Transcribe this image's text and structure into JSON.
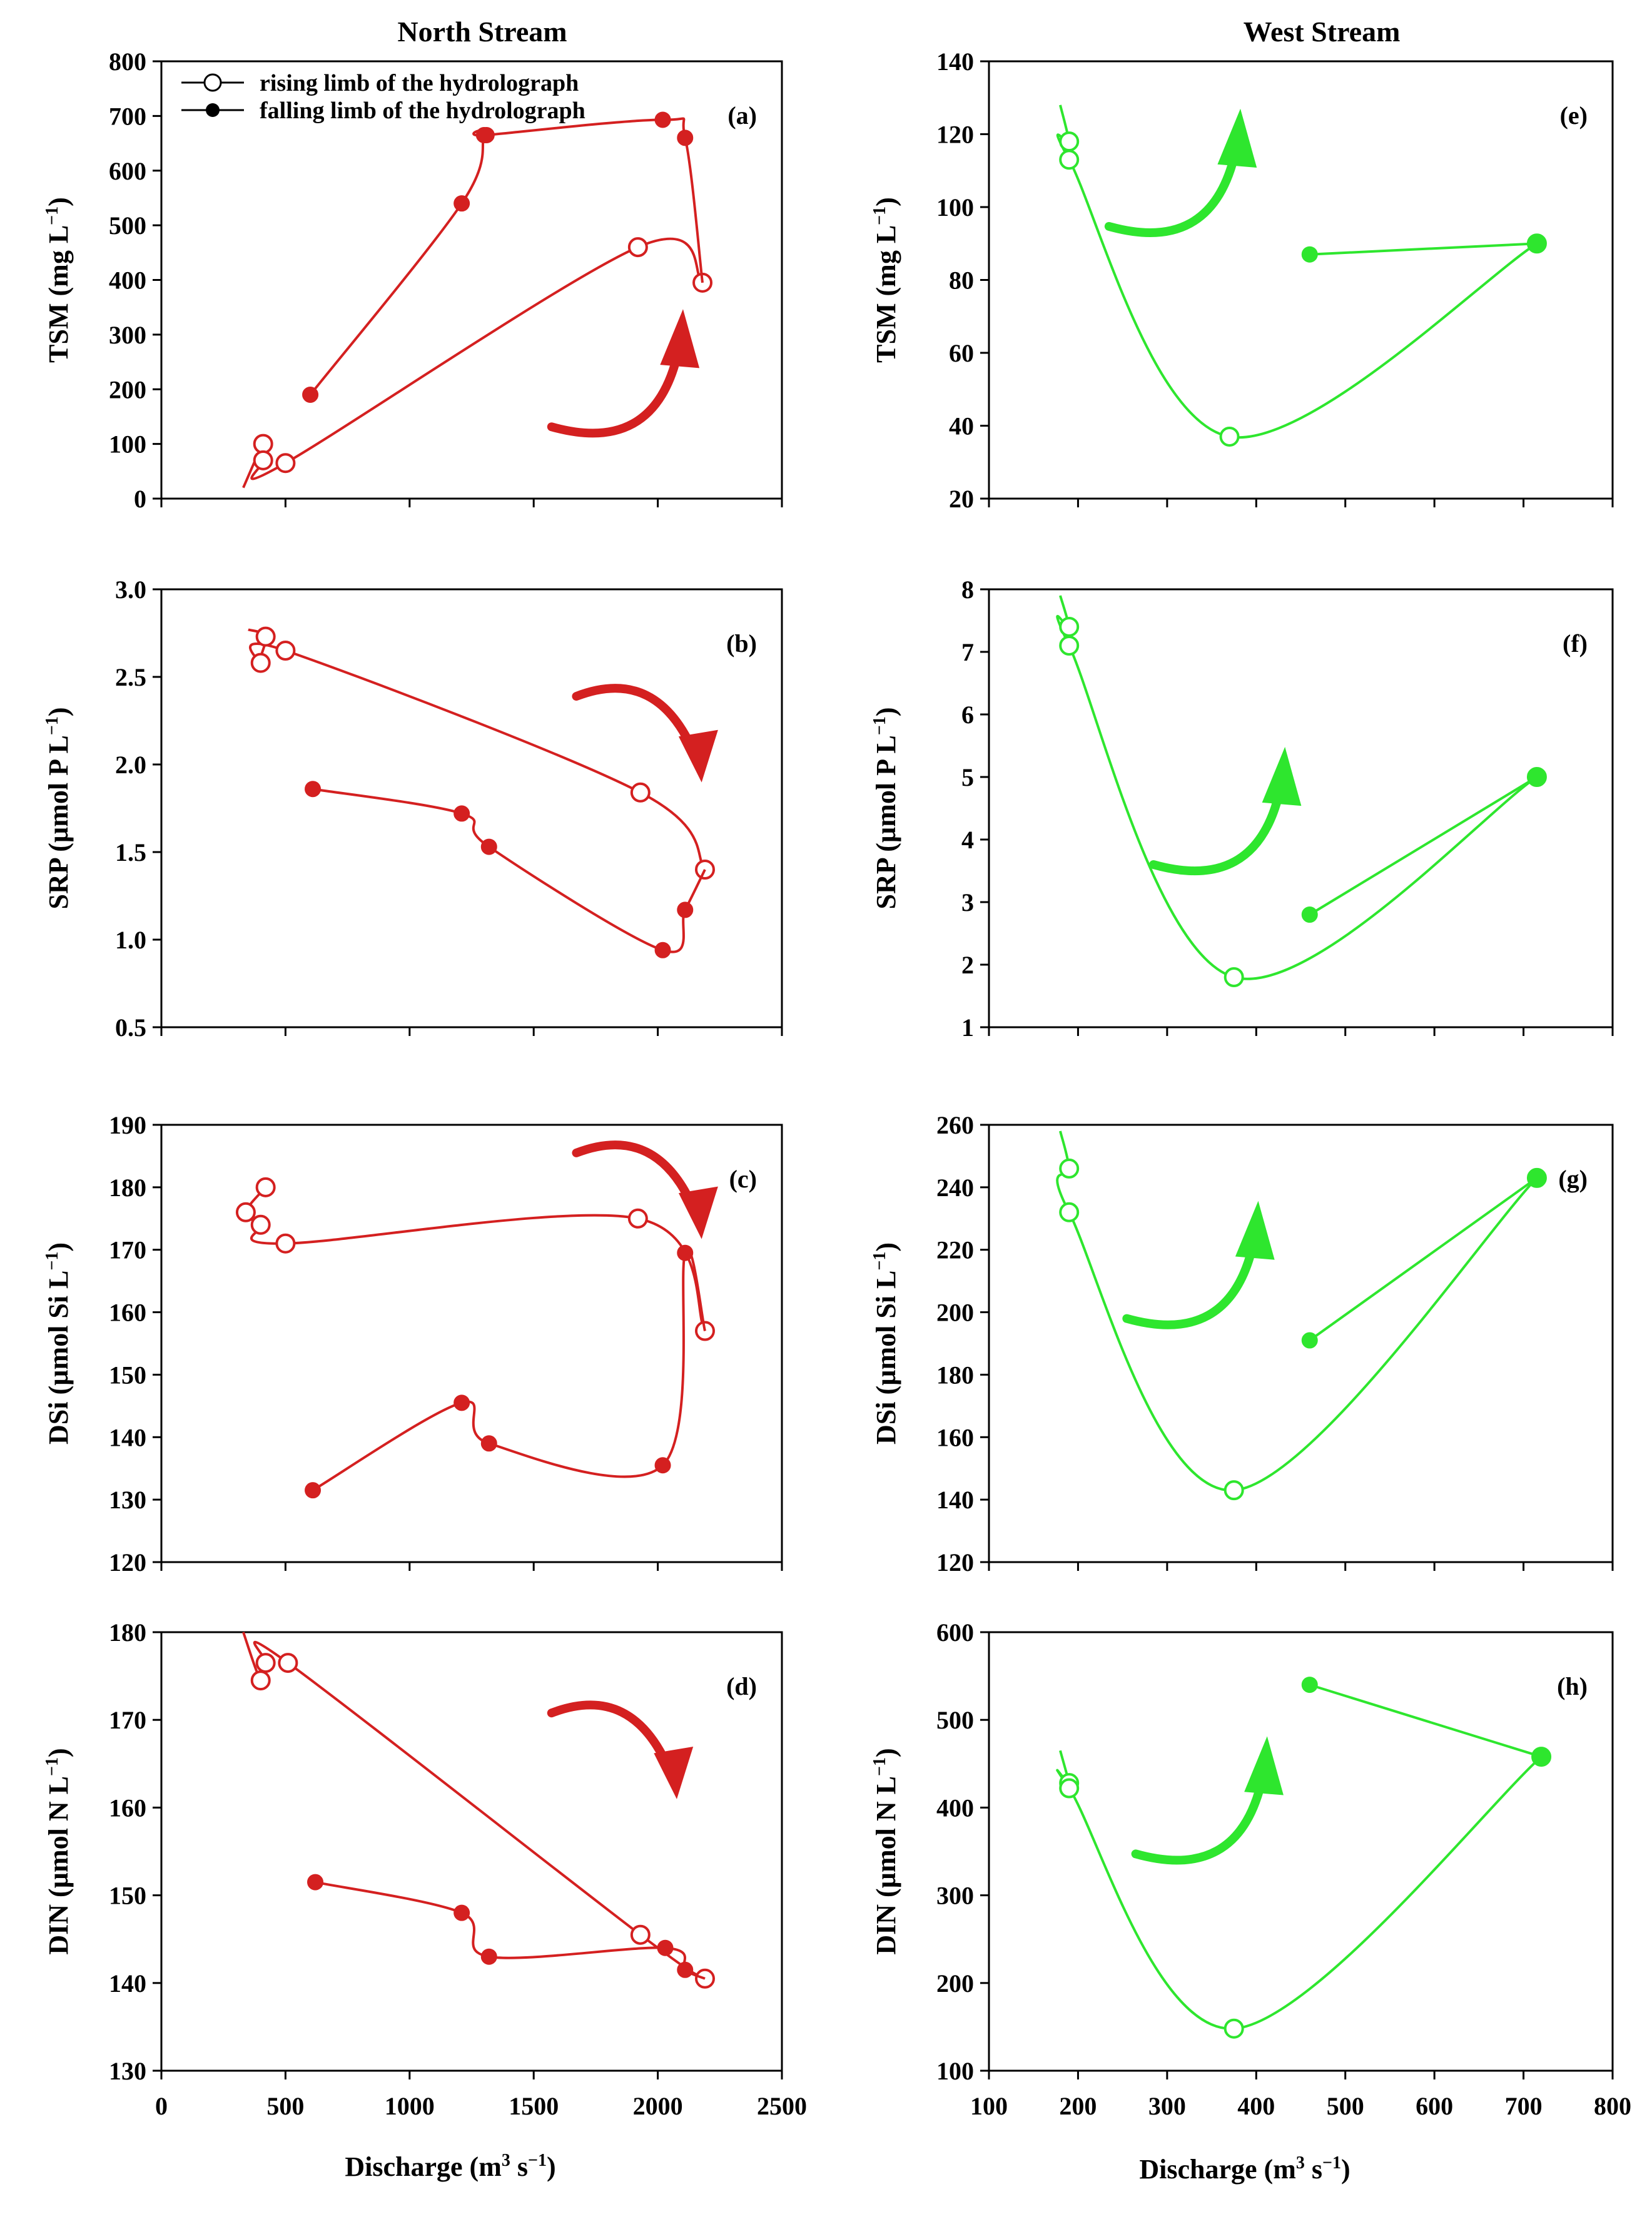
{
  "figure": {
    "column_titles": [
      "North Stream",
      "West Stream"
    ],
    "x_label_prefix": "Discharge (m",
    "x_label_sup1": "3",
    "x_label_mid": " s",
    "x_label_sup2": "−1",
    "x_label_suffix": ")",
    "legend": {
      "rising": "rising limb of the hydrolograph",
      "falling": "falling limb of the hydrolograph"
    },
    "colors": {
      "north": "#d42020",
      "west": "#2ee62e",
      "axis": "#000000"
    }
  },
  "chart_data": [
    {
      "type": "scatter",
      "panel": "(a)",
      "column": "North Stream",
      "ylabel_prefix": "TSM (mg L",
      "ylabel_sup": "−1",
      "ylabel_suffix": ")",
      "xlim": [
        0,
        2500
      ],
      "ylim": [
        0,
        800
      ],
      "xticks": [
        "0",
        "500",
        "1000",
        "1500",
        "2000",
        "2500"
      ],
      "xtick_values": [
        0,
        500,
        1000,
        1500,
        2000,
        2500
      ],
      "yticks": [
        "0",
        "100",
        "200",
        "300",
        "400",
        "500",
        "600",
        "700",
        "800"
      ],
      "ytick_values": [
        0,
        100,
        200,
        300,
        400,
        500,
        600,
        700,
        800
      ],
      "show_xtick_labels": false,
      "series": [
        {
          "name": "rising",
          "x": [
            330,
            410,
            410,
            500,
            1920,
            2180
          ],
          "y": [
            20,
            100,
            70,
            65,
            460,
            395
          ],
          "marker_from": 1
        },
        {
          "name": "falling",
          "x": [
            2180,
            2110,
            2020,
            1310,
            1300,
            1210,
            600
          ],
          "y": [
            395,
            660,
            693,
            665,
            665,
            540,
            190
          ],
          "marker_from": 1
        }
      ],
      "arrow": {
        "direction": "counterclockwise",
        "x": 1950,
        "y": 200
      }
    },
    {
      "type": "scatter",
      "panel": "(b)",
      "column": "North Stream",
      "ylabel_prefix": "SRP (µmol P L",
      "ylabel_sup": "−1",
      "ylabel_suffix": ")",
      "xlim": [
        0,
        2500
      ],
      "ylim": [
        0.5,
        3.0
      ],
      "xticks": [
        "0",
        "500",
        "1000",
        "1500",
        "2000",
        "2500"
      ],
      "xtick_values": [
        0,
        500,
        1000,
        1500,
        2000,
        2500
      ],
      "yticks": [
        "0.5",
        "1.0",
        "1.5",
        "2.0",
        "2.5",
        "3.0"
      ],
      "ytick_values": [
        0.5,
        1.0,
        1.5,
        2.0,
        2.5,
        3.0
      ],
      "show_xtick_labels": false,
      "series": [
        {
          "name": "rising",
          "x": [
            350,
            420,
            400,
            500,
            1930,
            2190
          ],
          "y": [
            2.77,
            2.73,
            2.58,
            2.65,
            1.84,
            1.4
          ],
          "marker_from": 1
        },
        {
          "name": "falling",
          "x": [
            2190,
            2110,
            2020,
            1320,
            1210,
            610
          ],
          "y": [
            1.4,
            1.17,
            0.94,
            1.53,
            1.72,
            1.86
          ],
          "marker_from": 1
        }
      ],
      "arrow": {
        "direction": "clockwise",
        "x": 2050,
        "y": 2.3
      }
    },
    {
      "type": "scatter",
      "panel": "(c)",
      "column": "North Stream",
      "ylabel_prefix": "DSi (µmol Si L",
      "ylabel_sup": "−1",
      "ylabel_suffix": ")",
      "xlim": [
        0,
        2500
      ],
      "ylim": [
        120,
        190
      ],
      "xticks": [
        "0",
        "500",
        "1000",
        "1500",
        "2000",
        "2500"
      ],
      "xtick_values": [
        0,
        500,
        1000,
        1500,
        2000,
        2500
      ],
      "yticks": [
        "120",
        "130",
        "140",
        "150",
        "160",
        "170",
        "180",
        "190"
      ],
      "ytick_values": [
        120,
        130,
        140,
        150,
        160,
        170,
        180,
        190
      ],
      "show_xtick_labels": false,
      "series": [
        {
          "name": "rising",
          "x": [
            420,
            340,
            400,
            500,
            1920,
            2190
          ],
          "y": [
            180,
            176,
            174,
            171,
            175,
            157
          ],
          "marker_from": 0
        },
        {
          "name": "falling",
          "x": [
            2190,
            2110,
            2020,
            1320,
            1210,
            610
          ],
          "y": [
            157,
            169.5,
            135.5,
            139,
            145.5,
            131.5
          ],
          "marker_from": 1
        }
      ],
      "arrow": {
        "direction": "clockwise",
        "x": 2050,
        "y": 183
      }
    },
    {
      "type": "scatter",
      "panel": "(d)",
      "column": "North Stream",
      "ylabel_prefix": "DIN (µmol N L",
      "ylabel_sup": "−1",
      "ylabel_suffix": ")",
      "xlim": [
        0,
        2500
      ],
      "ylim": [
        130,
        180
      ],
      "xticks": [
        "0",
        "500",
        "1000",
        "1500",
        "2000",
        "2500"
      ],
      "xtick_values": [
        0,
        500,
        1000,
        1500,
        2000,
        2500
      ],
      "yticks": [
        "130",
        "140",
        "150",
        "160",
        "170",
        "180"
      ],
      "ytick_values": [
        130,
        140,
        150,
        160,
        170,
        180
      ],
      "show_xtick_labels": true,
      "series": [
        {
          "name": "rising",
          "x": [
            330,
            400,
            420,
            510,
            1930,
            2190
          ],
          "y": [
            180,
            174.5,
            176.5,
            176.5,
            145.5,
            140.5
          ],
          "marker_from": 1
        },
        {
          "name": "falling",
          "x": [
            2190,
            2110,
            2030,
            1320,
            1210,
            620
          ],
          "y": [
            140.5,
            141.5,
            144,
            143,
            148,
            151.5
          ],
          "marker_from": 1
        }
      ],
      "arrow": {
        "direction": "clockwise",
        "x": 1950,
        "y": 169
      }
    },
    {
      "type": "scatter",
      "panel": "(e)",
      "column": "West Stream",
      "ylabel_prefix": "TSM (mg L",
      "ylabel_sup": "−1",
      "ylabel_suffix": ")",
      "xlim": [
        100,
        800
      ],
      "ylim": [
        20,
        140
      ],
      "xticks": [
        "100",
        "200",
        "300",
        "400",
        "500",
        "600",
        "700",
        "800"
      ],
      "xtick_values": [
        100,
        200,
        300,
        400,
        500,
        600,
        700,
        800
      ],
      "yticks": [
        "20",
        "40",
        "60",
        "80",
        "100",
        "120",
        "140"
      ],
      "ytick_values": [
        20,
        40,
        60,
        80,
        100,
        120,
        140
      ],
      "show_xtick_labels": false,
      "series": [
        {
          "name": "rising",
          "x": [
            180,
            190,
            190,
            370,
            715
          ],
          "y": [
            128,
            118,
            113,
            37,
            90
          ],
          "marker_from": 1
        },
        {
          "name": "falling",
          "x": [
            715,
            460
          ],
          "y": [
            90,
            87
          ],
          "marker_from": 0
        }
      ],
      "arrow": {
        "direction": "counterclockwise",
        "x": 340,
        "y": 105
      }
    },
    {
      "type": "scatter",
      "panel": "(f)",
      "column": "West Stream",
      "ylabel_prefix": "SRP (µmol P L",
      "ylabel_sup": "−1",
      "ylabel_suffix": ")",
      "xlim": [
        100,
        800
      ],
      "ylim": [
        1,
        8
      ],
      "xticks": [
        "100",
        "200",
        "300",
        "400",
        "500",
        "600",
        "700",
        "800"
      ],
      "xtick_values": [
        100,
        200,
        300,
        400,
        500,
        600,
        700,
        800
      ],
      "yticks": [
        "1",
        "2",
        "3",
        "4",
        "5",
        "6",
        "7",
        "8"
      ],
      "ytick_values": [
        1,
        2,
        3,
        4,
        5,
        6,
        7,
        8
      ],
      "show_xtick_labels": false,
      "series": [
        {
          "name": "rising",
          "x": [
            180,
            190,
            190,
            375,
            715
          ],
          "y": [
            7.9,
            7.4,
            7.1,
            1.8,
            5.0
          ],
          "marker_from": 1
        },
        {
          "name": "falling",
          "x": [
            715,
            460
          ],
          "y": [
            5.0,
            2.8
          ],
          "marker_from": 0
        }
      ],
      "arrow": {
        "direction": "counterclockwise",
        "x": 390,
        "y": 4.2
      }
    },
    {
      "type": "scatter",
      "panel": "(g)",
      "column": "West Stream",
      "ylabel_prefix": "DSi (µmol Si L",
      "ylabel_sup": "−1",
      "ylabel_suffix": ")",
      "xlim": [
        100,
        800
      ],
      "ylim": [
        120,
        260
      ],
      "xticks": [
        "100",
        "200",
        "300",
        "400",
        "500",
        "600",
        "700",
        "800"
      ],
      "xtick_values": [
        100,
        200,
        300,
        400,
        500,
        600,
        700,
        800
      ],
      "yticks": [
        "120",
        "140",
        "160",
        "180",
        "200",
        "220",
        "240",
        "260"
      ],
      "ytick_values": [
        120,
        140,
        160,
        180,
        200,
        220,
        240,
        260
      ],
      "show_xtick_labels": false,
      "series": [
        {
          "name": "rising",
          "x": [
            180,
            190,
            190,
            375,
            715
          ],
          "y": [
            258,
            246,
            232,
            143,
            243
          ],
          "marker_from": 1
        },
        {
          "name": "falling",
          "x": [
            715,
            460
          ],
          "y": [
            243,
            191
          ],
          "marker_from": 0
        }
      ],
      "arrow": {
        "direction": "counterclockwise",
        "x": 360,
        "y": 210
      }
    },
    {
      "type": "scatter",
      "panel": "(h)",
      "column": "West Stream",
      "ylabel_prefix": "DIN (µmol N L",
      "ylabel_sup": "−1",
      "ylabel_suffix": ")",
      "xlim": [
        100,
        800
      ],
      "ylim": [
        100,
        600
      ],
      "xticks": [
        "100",
        "200",
        "300",
        "400",
        "500",
        "600",
        "700",
        "800"
      ],
      "xtick_values": [
        100,
        200,
        300,
        400,
        500,
        600,
        700,
        800
      ],
      "yticks": [
        "100",
        "200",
        "300",
        "400",
        "500",
        "600"
      ],
      "ytick_values": [
        100,
        200,
        300,
        400,
        500,
        600
      ],
      "show_xtick_labels": true,
      "series": [
        {
          "name": "rising",
          "x": [
            180,
            190,
            190,
            375,
            720
          ],
          "y": [
            465,
            428,
            422,
            148,
            458
          ],
          "marker_from": 1
        },
        {
          "name": "falling",
          "x": [
            720,
            460
          ],
          "y": [
            458,
            540
          ],
          "marker_from": 0
        }
      ],
      "arrow": {
        "direction": "counterclockwise",
        "x": 370,
        "y": 390
      }
    }
  ]
}
